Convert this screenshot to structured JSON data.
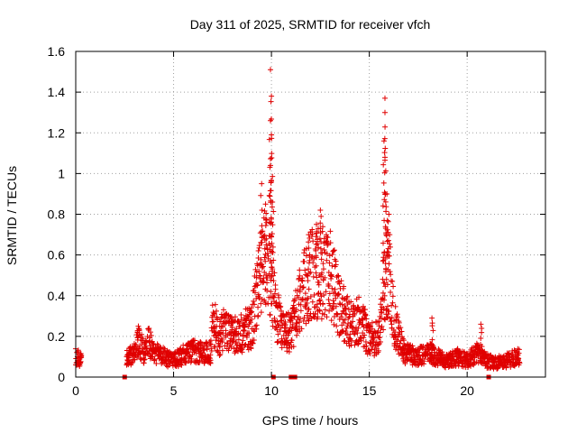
{
  "chart_data": {
    "type": "scatter",
    "title": "Day 311 of 2025, SRMTID for receiver vfch",
    "xlabel": "GPS time / hours",
    "ylabel": "SRMTID / TECUs",
    "xlim": [
      0,
      24
    ],
    "ylim": [
      0,
      1.6
    ],
    "x_ticks": [
      0,
      5,
      10,
      15,
      20
    ],
    "x_tick_labels": [
      "0",
      "5",
      "10",
      "15",
      "20"
    ],
    "y_ticks": [
      0,
      0.2,
      0.4,
      0.6,
      0.8,
      1.0,
      1.2,
      1.4,
      1.6
    ],
    "y_tick_labels": [
      "0",
      "0.2",
      "0.4",
      "0.6",
      "0.8",
      "1",
      "1.2",
      "1.4",
      "1.6"
    ],
    "grid": true,
    "marker": "plus",
    "color": "#e00000",
    "series": [
      {
        "name": "SRMTID",
        "envelope": [
          {
            "x": 0.0,
            "y": 0.1
          },
          {
            "x": 0.2,
            "y": 0.09
          },
          {
            "x": 0.3,
            "y": 0.08
          },
          {
            "x": 2.6,
            "y": 0.09
          },
          {
            "x": 3.0,
            "y": 0.12
          },
          {
            "x": 3.2,
            "y": 0.18
          },
          {
            "x": 3.5,
            "y": 0.12
          },
          {
            "x": 3.7,
            "y": 0.18
          },
          {
            "x": 4.0,
            "y": 0.12
          },
          {
            "x": 4.5,
            "y": 0.1
          },
          {
            "x": 5.0,
            "y": 0.08
          },
          {
            "x": 5.5,
            "y": 0.11
          },
          {
            "x": 6.0,
            "y": 0.13
          },
          {
            "x": 6.5,
            "y": 0.12
          },
          {
            "x": 6.9,
            "y": 0.12
          },
          {
            "x": 7.0,
            "y": 0.3
          },
          {
            "x": 7.3,
            "y": 0.18
          },
          {
            "x": 7.6,
            "y": 0.26
          },
          {
            "x": 8.0,
            "y": 0.2
          },
          {
            "x": 8.5,
            "y": 0.22
          },
          {
            "x": 9.0,
            "y": 0.25
          },
          {
            "x": 9.3,
            "y": 0.45
          },
          {
            "x": 9.6,
            "y": 0.55
          },
          {
            "x": 9.8,
            "y": 0.6
          },
          {
            "x": 10.0,
            "y": 0.45
          },
          {
            "x": 10.3,
            "y": 0.3
          },
          {
            "x": 10.6,
            "y": 0.22
          },
          {
            "x": 11.0,
            "y": 0.22
          },
          {
            "x": 11.5,
            "y": 0.4
          },
          {
            "x": 12.0,
            "y": 0.5
          },
          {
            "x": 12.5,
            "y": 0.52
          },
          {
            "x": 13.0,
            "y": 0.5
          },
          {
            "x": 13.5,
            "y": 0.35
          },
          {
            "x": 14.0,
            "y": 0.25
          },
          {
            "x": 14.5,
            "y": 0.3
          },
          {
            "x": 15.0,
            "y": 0.18
          },
          {
            "x": 15.5,
            "y": 0.2
          },
          {
            "x": 15.8,
            "y": 0.5
          },
          {
            "x": 16.0,
            "y": 0.5
          },
          {
            "x": 16.3,
            "y": 0.25
          },
          {
            "x": 16.8,
            "y": 0.12
          },
          {
            "x": 17.5,
            "y": 0.1
          },
          {
            "x": 18.0,
            "y": 0.12
          },
          {
            "x": 18.5,
            "y": 0.1
          },
          {
            "x": 19.0,
            "y": 0.08
          },
          {
            "x": 19.5,
            "y": 0.1
          },
          {
            "x": 20.0,
            "y": 0.08
          },
          {
            "x": 20.5,
            "y": 0.12
          },
          {
            "x": 21.0,
            "y": 0.08
          },
          {
            "x": 21.5,
            "y": 0.07
          },
          {
            "x": 22.0,
            "y": 0.08
          },
          {
            "x": 22.7,
            "y": 0.1
          }
        ],
        "peaks": [
          {
            "x": 9.5,
            "y": 0.95
          },
          {
            "x": 9.7,
            "y": 0.85
          },
          {
            "x": 9.95,
            "y": 1.51
          },
          {
            "x": 10.0,
            "y": 1.38
          },
          {
            "x": 9.95,
            "y": 1.26
          },
          {
            "x": 10.0,
            "y": 1.19
          },
          {
            "x": 9.95,
            "y": 1.04
          },
          {
            "x": 10.05,
            "y": 0.86
          },
          {
            "x": 11.9,
            "y": 0.7
          },
          {
            "x": 12.5,
            "y": 0.82
          },
          {
            "x": 12.3,
            "y": 0.75
          },
          {
            "x": 15.8,
            "y": 1.37
          },
          {
            "x": 15.8,
            "y": 1.3
          },
          {
            "x": 15.75,
            "y": 1.16
          },
          {
            "x": 15.8,
            "y": 1.08
          },
          {
            "x": 15.9,
            "y": 0.9
          },
          {
            "x": 16.0,
            "y": 0.8
          },
          {
            "x": 18.2,
            "y": 0.29
          },
          {
            "x": 20.7,
            "y": 0.26
          },
          {
            "x": 3.2,
            "y": 0.25
          }
        ],
        "zero_markers": [
          2.5,
          10.1,
          11.0,
          11.2,
          21.1
        ]
      }
    ]
  }
}
